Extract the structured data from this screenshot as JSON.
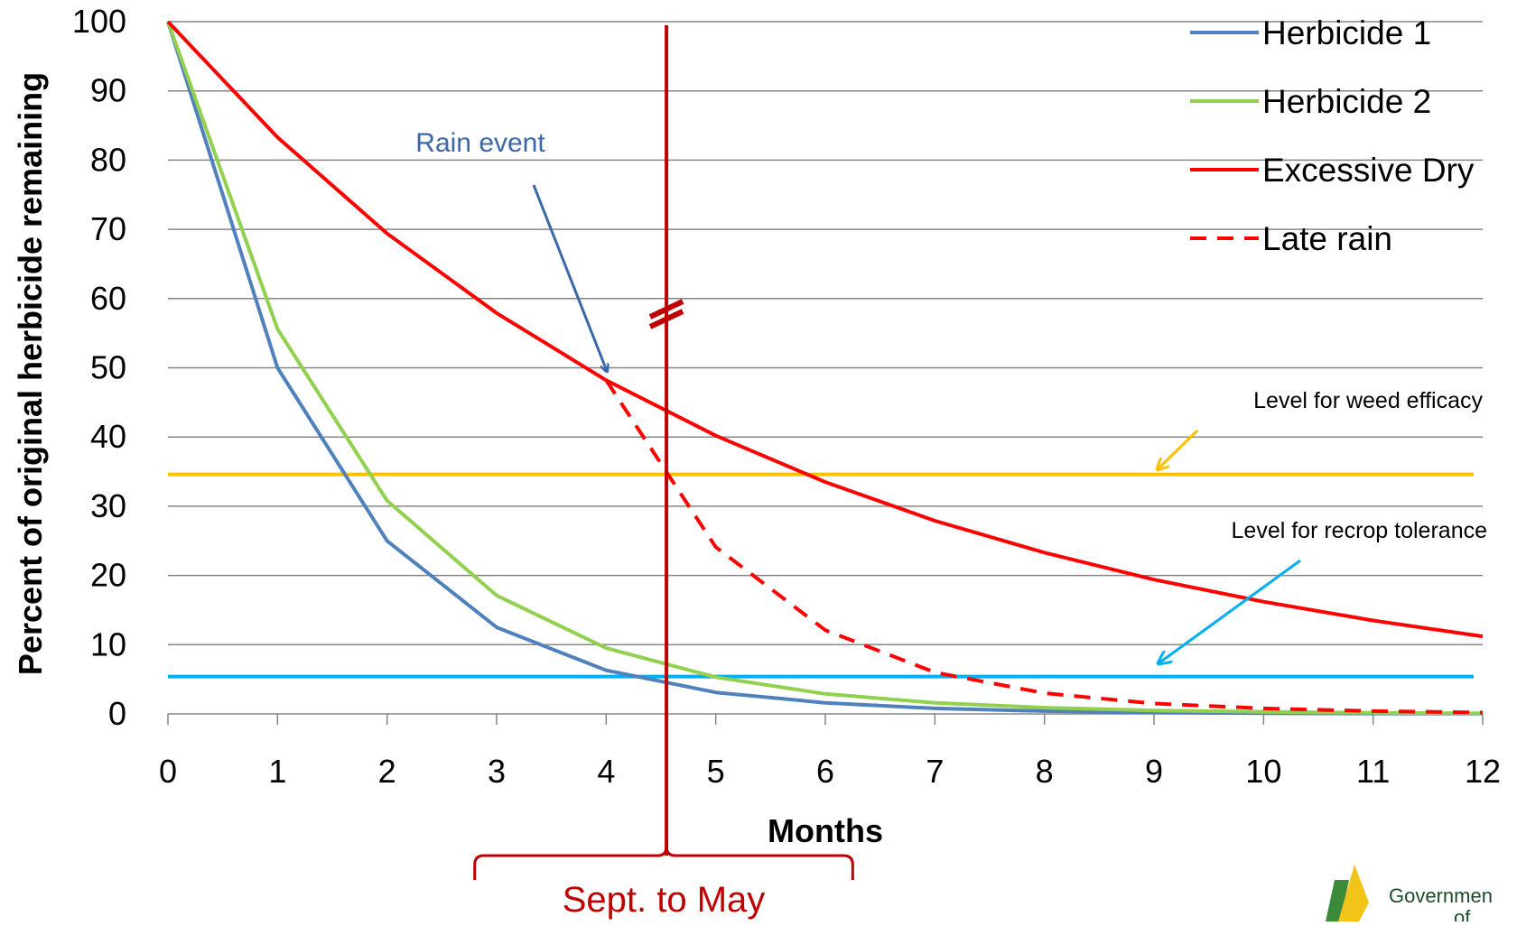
{
  "chart_data": {
    "type": "line",
    "title": "",
    "xlabel": "Months",
    "ylabel": "Percent of original herbicide remaining",
    "xlim": [
      0,
      12
    ],
    "ylim": [
      0,
      100
    ],
    "x_ticks": [
      "0",
      "1",
      "2",
      "3",
      "4",
      "5",
      "6",
      "7",
      "8",
      "9",
      "10",
      "11",
      "12"
    ],
    "y_ticks": [
      "0",
      "10",
      "20",
      "30",
      "40",
      "50",
      "60",
      "70",
      "80",
      "90",
      "100"
    ],
    "grid": "horizontal",
    "legend_position": "top-right",
    "series": [
      {
        "name": "Herbicide 1",
        "color": "#4F81BD",
        "style": "solid",
        "x": [
          0,
          1,
          2,
          3,
          4,
          5,
          6,
          7,
          8,
          9,
          10,
          11,
          12
        ],
        "values": [
          100,
          50,
          25,
          12.5,
          6.3,
          3.1,
          1.6,
          0.8,
          0.4,
          0.2,
          0.1,
          0.05,
          0.02
        ]
      },
      {
        "name": "Herbicide 2",
        "color": "#92D050",
        "style": "solid",
        "x": [
          0,
          1,
          2,
          3,
          4,
          5,
          6,
          7,
          8,
          9,
          10,
          11,
          12
        ],
        "values": [
          100,
          55.6,
          30.8,
          17.1,
          9.5,
          5.3,
          2.9,
          1.6,
          0.9,
          0.5,
          0.3,
          0.15,
          0.08
        ]
      },
      {
        "name": "Excessive Dry",
        "color": "#FF0000",
        "style": "solid",
        "x": [
          0,
          1,
          2,
          3,
          4,
          5,
          6,
          7,
          8,
          9,
          10,
          11,
          12
        ],
        "values": [
          100,
          83.3,
          69.4,
          57.9,
          48.2,
          40.2,
          33.5,
          27.9,
          23.3,
          19.4,
          16.2,
          13.5,
          11.2
        ]
      },
      {
        "name": "Late rain",
        "color": "#FF0000",
        "style": "dashed",
        "x": [
          4,
          5,
          6,
          7,
          8,
          9,
          10,
          11,
          12
        ],
        "values": [
          48.2,
          24.1,
          12.1,
          6,
          3,
          1.5,
          0.8,
          0.4,
          0.2
        ]
      }
    ],
    "reference_lines": [
      {
        "label": "Level for weed efficacy",
        "value": 34.6,
        "color": "#FFC000"
      },
      {
        "label": "Level for recrop tolerance",
        "value": 5.4,
        "color": "#00B0F0"
      }
    ],
    "vertical_marker": {
      "x": 4.55,
      "color": "#C00000",
      "label": "Sept. to May",
      "bracket_from": 2.8,
      "bracket_to": 6.25
    },
    "annotations": {
      "rain_event": {
        "text": "Rain event",
        "color": "#3B68A8"
      },
      "weed_efficacy": {
        "text": "Level for weed efficacy",
        "arrow_color": "#FFC000"
      },
      "recrop_tolerance": {
        "text": "Level for recrop tolerance",
        "arrow_color": "#00B0F0"
      }
    }
  },
  "logo": {
    "text_line1": "Governmen",
    "text_line2": "of"
  }
}
